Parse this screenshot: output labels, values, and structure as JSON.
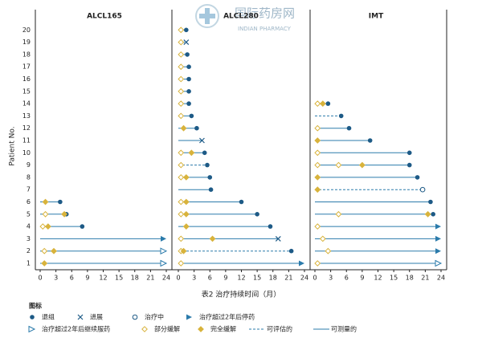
{
  "watermark": {
    "title": "国际药房网",
    "subtitle": "INDIAN PHARMACY"
  },
  "y_axis": {
    "label": "Patient No.",
    "categories": [
      1,
      2,
      3,
      4,
      5,
      6,
      7,
      8,
      9,
      10,
      11,
      12,
      13,
      14,
      15,
      16,
      17,
      18,
      19,
      20
    ]
  },
  "x_axis_label": "表2 治疗持续时间（月）",
  "colors": {
    "line": "#2b7bab",
    "marker": "#1d5a86",
    "diamond": "#d8b33c"
  },
  "legend": {
    "title": "图标",
    "items": [
      {
        "label": "退组",
        "marker": "circle"
      },
      {
        "label": "进展",
        "marker": "x"
      },
      {
        "label": "治疗中",
        "marker": "open-circle"
      },
      {
        "label": "治疗超过2年后停药",
        "marker": "arrow"
      },
      {
        "label": "治疗超过2年后继续服药",
        "marker": "open-arrow"
      },
      {
        "label": "部分缓解",
        "marker": "open-diamond"
      },
      {
        "label": "完全缓解",
        "marker": "diamond"
      },
      {
        "label": "可评估的",
        "marker": "dashed"
      },
      {
        "label": "可测量的",
        "marker": "solid"
      }
    ]
  },
  "chart_data": [
    {
      "type": "swimmer",
      "title": "ALCL165",
      "xlim": [
        0,
        24
      ],
      "xticks": [
        0,
        3,
        6,
        9,
        12,
        15,
        18,
        21,
        24
      ],
      "durations": [
        24,
        24,
        24,
        8,
        5,
        3.8,
        null,
        null,
        null,
        null,
        null,
        null,
        null,
        null,
        null,
        null,
        null,
        null,
        null,
        null
      ],
      "end_markers": [
        "open-arrow",
        "open-arrow",
        "arrow",
        "circle",
        "circle",
        "circle",
        null,
        null,
        null,
        null,
        null,
        null,
        null,
        null,
        null,
        null,
        null,
        null,
        null,
        null
      ],
      "line_styles": [
        "solid",
        "solid",
        "solid",
        "solid",
        "solid",
        "solid",
        null,
        null,
        null,
        null,
        null,
        null,
        null,
        null,
        null,
        null,
        null,
        null,
        null,
        null
      ],
      "partial_response": [
        [],
        [
          0.8
        ],
        [],
        [
          0.5
        ],
        [
          1
        ],
        [],
        [],
        [],
        [],
        [],
        [],
        [],
        [],
        [],
        [],
        [],
        [],
        [],
        [],
        []
      ],
      "complete_response": [
        [
          0.8
        ],
        [
          2.6
        ],
        [],
        [
          1.5
        ],
        [
          4.6
        ],
        [
          1
        ],
        [],
        [],
        [],
        [],
        [],
        [],
        [],
        [],
        [],
        [],
        [],
        [],
        [],
        []
      ]
    },
    {
      "type": "swimmer",
      "title": "ALCL280",
      "xlim": [
        0,
        24
      ],
      "xticks": [
        0,
        3,
        6,
        9,
        12,
        15,
        18,
        21,
        24
      ],
      "durations": [
        24,
        21.5,
        19,
        17.5,
        15,
        12,
        6.2,
        6,
        5.5,
        5,
        4.5,
        3.5,
        2.5,
        2,
        2,
        2,
        2,
        1.7,
        1.5,
        1.5
      ],
      "end_markers": [
        "arrow",
        "circle",
        "x",
        "circle",
        "circle",
        "circle",
        "circle",
        "circle",
        "circle",
        "circle",
        "x",
        "circle",
        "circle",
        "circle",
        "circle",
        "circle",
        "circle",
        "circle",
        "x",
        "circle"
      ],
      "line_styles": [
        "solid",
        "dashed",
        "solid",
        "solid",
        "solid",
        "solid",
        "solid",
        "solid",
        "dashed",
        "solid",
        "solid",
        "solid",
        "solid",
        "solid",
        "solid",
        "solid",
        "solid",
        "solid",
        "dashed",
        "solid"
      ],
      "partial_response": [
        [
          0.5
        ],
        [
          0.5
        ],
        [
          0.5
        ],
        [],
        [
          0.5
        ],
        [
          0.5
        ],
        [],
        [
          0.5
        ],
        [
          0.5
        ],
        [
          0.5
        ],
        [],
        [],
        [
          0.5
        ],
        [
          0.5
        ],
        [
          0.5
        ],
        [
          0.5
        ],
        [
          0.5
        ],
        [
          0.5
        ],
        [
          0.5
        ],
        [
          0.5
        ]
      ],
      "complete_response": [
        [],
        [
          1
        ],
        [
          6.5
        ],
        [
          1.5
        ],
        [
          1.5
        ],
        [
          1.5
        ],
        [],
        [
          1.5
        ],
        [],
        [
          2.5
        ],
        [],
        [
          1
        ],
        [],
        [],
        [],
        [],
        [],
        [],
        [],
        []
      ]
    },
    {
      "type": "swimmer",
      "title": "IMT",
      "xlim": [
        0,
        24
      ],
      "xticks": [
        0,
        3,
        6,
        9,
        12,
        15,
        18,
        21,
        24
      ],
      "durations": [
        24,
        24,
        24,
        24,
        22.5,
        22,
        20.5,
        19.5,
        18,
        18,
        10.5,
        6.5,
        5,
        2.5,
        null,
        null,
        null,
        null,
        null,
        null
      ],
      "end_markers": [
        "open-arrow",
        "arrow",
        "arrow",
        "arrow",
        "circle",
        "circle",
        "open-circle",
        "circle",
        "circle",
        "circle",
        "circle",
        "circle",
        "circle",
        "circle",
        null,
        null,
        null,
        null,
        null,
        null
      ],
      "line_styles": [
        "solid",
        "solid",
        "solid",
        "solid",
        "solid",
        "solid",
        "dashed",
        "solid",
        "solid",
        "solid",
        "solid",
        "solid",
        "dashed",
        "solid",
        null,
        null,
        null,
        null,
        null,
        null
      ],
      "partial_response": [
        [
          0.5
        ],
        [
          2.5
        ],
        [
          1.5
        ],
        [
          0.5
        ],
        [
          4.5
        ],
        [],
        [],
        [],
        [
          0.5,
          4.5
        ],
        [
          0.5
        ],
        [],
        [
          0.5
        ],
        [],
        [
          0.5
        ],
        [],
        [],
        [],
        [],
        [],
        []
      ],
      "complete_response": [
        [],
        [],
        [],
        [],
        [
          21.5
        ],
        [],
        [
          0.5
        ],
        [
          0.5
        ],
        [
          9
        ],
        [],
        [
          0.5
        ],
        [],
        [],
        [
          1.5
        ],
        [],
        [],
        [],
        [],
        [],
        []
      ]
    }
  ]
}
